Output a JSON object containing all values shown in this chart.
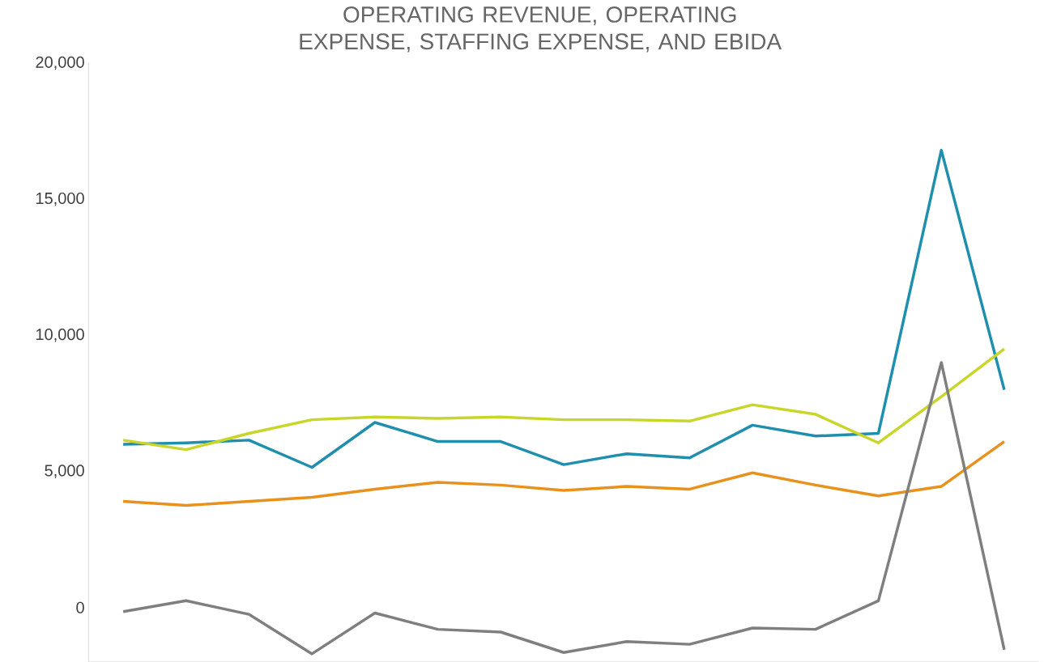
{
  "chart_data": {
    "type": "line",
    "title": "OPERATING REVENUE, OPERATING EXPENSE, STAFFING EXPENSE, AND EBIDA",
    "categories": [
      null,
      null,
      null,
      null,
      null,
      null,
      null,
      null,
      null,
      null,
      null,
      null,
      null,
      null,
      null
    ],
    "series": [
      {
        "color": "#1f8fad",
        "values": [
          6000,
          6050,
          6150,
          5150,
          6800,
          6100,
          6100,
          5250,
          5650,
          5500,
          6700,
          6300,
          6400,
          16800,
          8000
        ]
      },
      {
        "color": "#c8d62a",
        "values": [
          6150,
          5800,
          6400,
          6900,
          7000,
          6950,
          7000,
          6900,
          6900,
          6850,
          7450,
          7100,
          6050,
          7750,
          9500
        ]
      },
      {
        "color": "#e8911c",
        "values": [
          3900,
          3750,
          3900,
          4050,
          4350,
          4600,
          4500,
          4300,
          4450,
          4350,
          4950,
          4500,
          4100,
          4450,
          6100
        ]
      },
      {
        "color": "#7f7f7f",
        "values": [
          -150,
          250,
          -250,
          -1700,
          -200,
          -800,
          -900,
          -1650,
          -1250,
          -1350,
          -750,
          -800,
          250,
          9000,
          -1550
        ]
      }
    ],
    "ylim": [
      -2000,
      20000
    ],
    "yticks": [
      {
        "value": 0,
        "label": "0"
      },
      {
        "value": 5000,
        "label": "5,000"
      },
      {
        "value": 10000,
        "label": "10,000"
      },
      {
        "value": 15000,
        "label": "15,000"
      },
      {
        "value": 20000,
        "label": "20,000"
      }
    ],
    "tick_labels": "y",
    "grid": false,
    "legend": false,
    "marker": "none",
    "line_style": "solid"
  }
}
